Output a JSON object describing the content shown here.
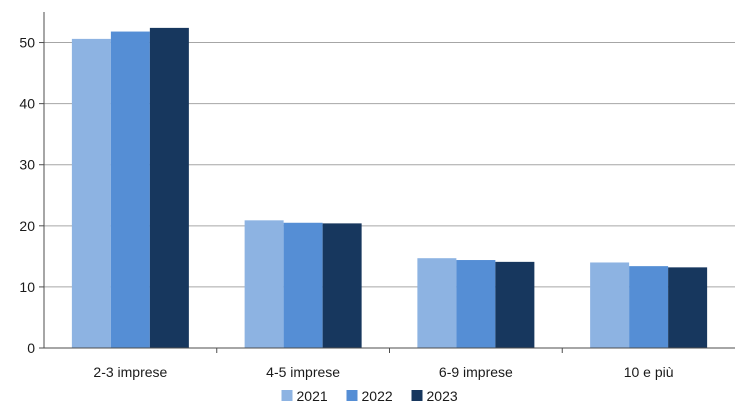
{
  "chart_data": {
    "type": "bar",
    "title": "",
    "xlabel": "",
    "ylabel": "",
    "ylim": [
      0,
      55
    ],
    "yticks": [
      0,
      10,
      20,
      30,
      40,
      50
    ],
    "grid": "horizontal",
    "legend_position": "bottom",
    "categories": [
      "2-3 imprese",
      "4-5 imprese",
      "6-9 imprese",
      "10 e più"
    ],
    "series": [
      {
        "name": "2021",
        "color": "#8db3e2",
        "values": [
          50.6,
          20.9,
          14.7,
          14.0
        ]
      },
      {
        "name": "2022",
        "color": "#558ed5",
        "values": [
          51.8,
          20.5,
          14.4,
          13.4
        ]
      },
      {
        "name": "2023",
        "color": "#17375e",
        "values": [
          52.4,
          20.4,
          14.1,
          13.2
        ]
      }
    ]
  }
}
